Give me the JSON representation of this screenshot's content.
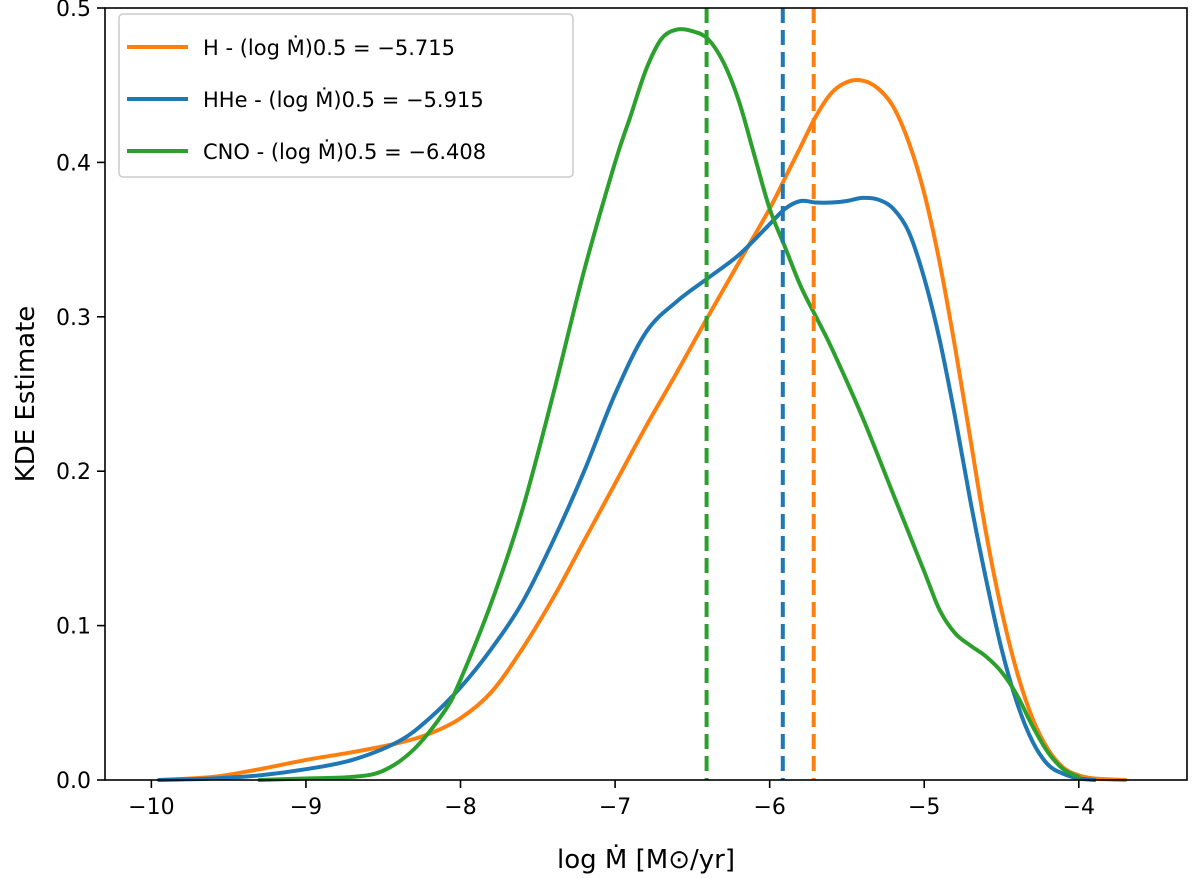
{
  "chart_data": {
    "type": "line",
    "title": "",
    "xlabel": "log Ṁ [M⊙/yr]",
    "ylabel": "KDE Estimate",
    "xlim": [
      -10.3,
      -3.3
    ],
    "ylim": [
      0.0,
      0.5
    ],
    "xticks": [
      -10,
      -9,
      -8,
      -7,
      -6,
      -5,
      -4
    ],
    "xtick_labels": [
      "−10",
      "−9",
      "−8",
      "−7",
      "−6",
      "−5",
      "−4"
    ],
    "yticks": [
      0.0,
      0.1,
      0.2,
      0.3,
      0.4,
      0.5
    ],
    "ytick_labels": [
      "0.0",
      "0.1",
      "0.2",
      "0.3",
      "0.4",
      "0.5"
    ],
    "grid": false,
    "legend_position": "top-left",
    "series": [
      {
        "name": "H",
        "legend_label": "H      - (log Ṁ)0.5 = −5.715",
        "color": "#ff7f0e",
        "median": -5.715,
        "x": [
          -9.95,
          -9.6,
          -9.3,
          -9.0,
          -8.7,
          -8.4,
          -8.2,
          -8.0,
          -7.8,
          -7.6,
          -7.4,
          -7.2,
          -7.0,
          -6.8,
          -6.6,
          -6.4,
          -6.2,
          -6.0,
          -5.9,
          -5.8,
          -5.7,
          -5.6,
          -5.5,
          -5.4,
          -5.3,
          -5.2,
          -5.1,
          -5.0,
          -4.9,
          -4.8,
          -4.7,
          -4.6,
          -4.5,
          -4.4,
          -4.3,
          -4.2,
          -4.1,
          -4.0,
          -3.9,
          -3.7
        ],
        "y": [
          0.0,
          0.002,
          0.007,
          0.013,
          0.018,
          0.024,
          0.03,
          0.04,
          0.057,
          0.085,
          0.118,
          0.155,
          0.192,
          0.229,
          0.264,
          0.3,
          0.335,
          0.37,
          0.39,
          0.41,
          0.43,
          0.445,
          0.452,
          0.453,
          0.448,
          0.436,
          0.413,
          0.38,
          0.335,
          0.28,
          0.22,
          0.16,
          0.11,
          0.07,
          0.04,
          0.02,
          0.008,
          0.003,
          0.001,
          0.0
        ]
      },
      {
        "name": "HHe",
        "legend_label": "HHe - (log Ṁ)0.5 = −5.915",
        "color": "#1f77b4",
        "median": -5.915,
        "x": [
          -9.95,
          -9.6,
          -9.3,
          -9.0,
          -8.7,
          -8.4,
          -8.2,
          -8.0,
          -7.8,
          -7.6,
          -7.4,
          -7.2,
          -7.0,
          -6.8,
          -6.6,
          -6.4,
          -6.2,
          -6.0,
          -5.9,
          -5.8,
          -5.7,
          -5.6,
          -5.5,
          -5.4,
          -5.3,
          -5.2,
          -5.1,
          -5.0,
          -4.9,
          -4.8,
          -4.7,
          -4.6,
          -4.5,
          -4.4,
          -4.3,
          -4.2,
          -4.1,
          -4.0,
          -3.9
        ],
        "y": [
          0.0,
          0.001,
          0.003,
          0.007,
          0.013,
          0.025,
          0.04,
          0.06,
          0.085,
          0.115,
          0.155,
          0.2,
          0.25,
          0.29,
          0.31,
          0.325,
          0.34,
          0.36,
          0.37,
          0.375,
          0.374,
          0.374,
          0.375,
          0.377,
          0.376,
          0.37,
          0.355,
          0.325,
          0.285,
          0.235,
          0.18,
          0.13,
          0.085,
          0.05,
          0.025,
          0.01,
          0.004,
          0.001,
          0.0
        ]
      },
      {
        "name": "CNO",
        "legend_label": "CNO - (log Ṁ)0.5 = −6.408",
        "color": "#2ca02c",
        "median": -6.408,
        "x": [
          -9.3,
          -9.0,
          -8.7,
          -8.5,
          -8.3,
          -8.1,
          -8.0,
          -7.8,
          -7.6,
          -7.4,
          -7.2,
          -7.0,
          -6.9,
          -6.8,
          -6.7,
          -6.6,
          -6.5,
          -6.4,
          -6.3,
          -6.2,
          -6.1,
          -6.0,
          -5.9,
          -5.8,
          -5.7,
          -5.6,
          -5.4,
          -5.2,
          -5.0,
          -4.9,
          -4.8,
          -4.7,
          -4.6,
          -4.5,
          -4.4,
          -4.3,
          -4.2,
          -4.1,
          -4.0
        ],
        "y": [
          0.0,
          0.001,
          0.002,
          0.006,
          0.02,
          0.045,
          0.065,
          0.115,
          0.175,
          0.25,
          0.33,
          0.4,
          0.43,
          0.46,
          0.48,
          0.486,
          0.485,
          0.48,
          0.465,
          0.44,
          0.405,
          0.37,
          0.345,
          0.32,
          0.3,
          0.28,
          0.235,
          0.185,
          0.135,
          0.11,
          0.095,
          0.087,
          0.08,
          0.07,
          0.055,
          0.035,
          0.018,
          0.007,
          0.002
        ]
      }
    ]
  }
}
